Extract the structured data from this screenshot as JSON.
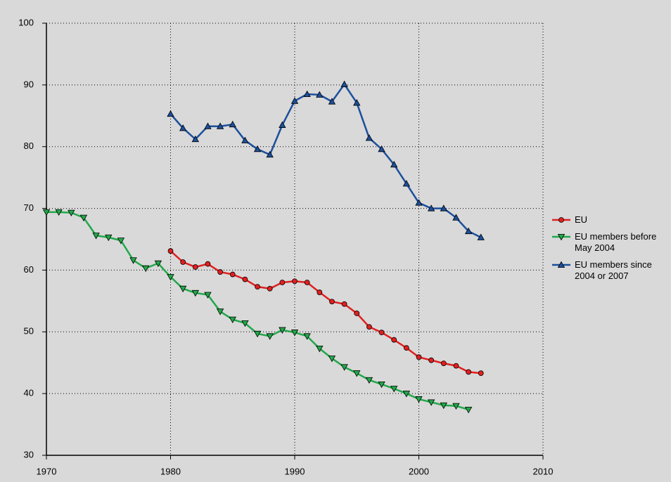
{
  "chart_data": {
    "type": "line",
    "x": [
      1970,
      1971,
      1972,
      1973,
      1974,
      1975,
      1976,
      1977,
      1978,
      1979,
      1980,
      1981,
      1982,
      1983,
      1984,
      1985,
      1986,
      1987,
      1988,
      1989,
      1990,
      1991,
      1992,
      1993,
      1994,
      1995,
      1996,
      1997,
      1998,
      1999,
      2000,
      2001,
      2002,
      2003,
      2004,
      2005
    ],
    "series": [
      {
        "name": "EU",
        "color": "#e02020",
        "marker": "circle",
        "values": [
          null,
          null,
          null,
          null,
          null,
          null,
          null,
          null,
          null,
          null,
          63.1,
          61.3,
          60.5,
          61.0,
          59.7,
          59.3,
          58.5,
          57.3,
          57.0,
          58.0,
          58.2,
          58.0,
          56.4,
          54.9,
          54.5,
          53.0,
          50.8,
          49.9,
          48.7,
          47.4,
          45.9,
          45.4,
          44.9,
          44.5,
          43.5,
          43.3
        ]
      },
      {
        "name": "EU members before May 2004",
        "color": "#22a84a",
        "marker": "triangle-down",
        "values": [
          69.4,
          69.4,
          69.3,
          68.5,
          65.6,
          65.3,
          64.8,
          61.6,
          60.3,
          61.1,
          58.9,
          57.0,
          56.3,
          56.0,
          53.3,
          52.0,
          51.4,
          49.7,
          49.3,
          50.3,
          49.9,
          49.3,
          47.3,
          45.7,
          44.3,
          43.3,
          42.2,
          41.5,
          40.8,
          40.0,
          39.1,
          38.6,
          38.1,
          38.0,
          37.4,
          null
        ]
      },
      {
        "name": "EU members since 2004 or 2007",
        "color": "#1c4f9c",
        "marker": "triangle-up",
        "values": [
          null,
          null,
          null,
          null,
          null,
          null,
          null,
          null,
          null,
          null,
          85.3,
          83.0,
          81.2,
          83.3,
          83.3,
          83.6,
          81.0,
          79.6,
          78.7,
          83.5,
          87.4,
          88.5,
          88.4,
          87.3,
          90.1,
          87.1,
          81.4,
          79.6,
          77.1,
          74.0,
          70.9,
          70.0,
          70.0,
          68.5,
          66.3,
          65.3
        ]
      }
    ],
    "xlim": [
      1970,
      2010
    ],
    "xticks": [
      1970,
      1980,
      1990,
      2000,
      2010
    ],
    "ylim": [
      30,
      100
    ],
    "yticks": [
      30,
      40,
      50,
      60,
      70,
      80,
      90,
      100
    ],
    "grid": true,
    "legend": "right"
  }
}
